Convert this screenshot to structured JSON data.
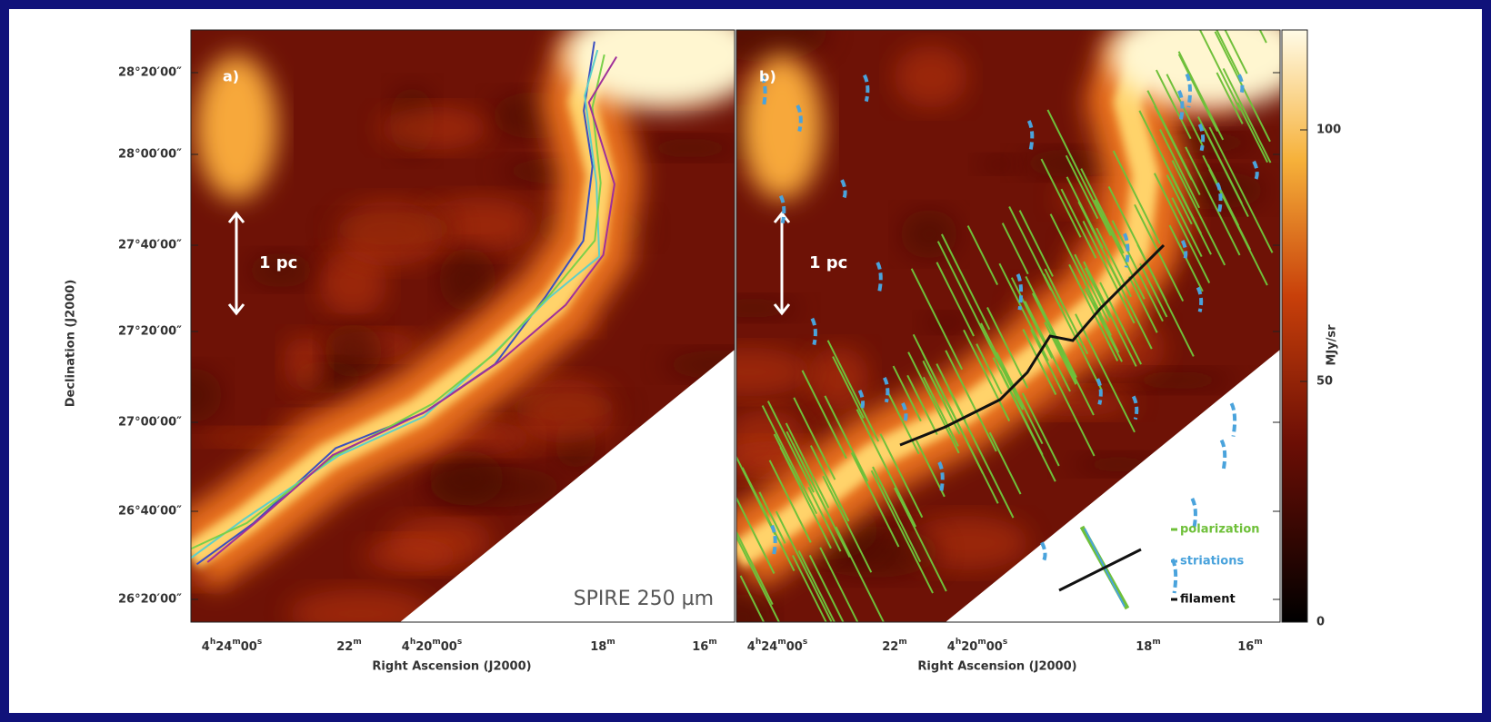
{
  "panels": [
    {
      "label": "a)",
      "scale_bar": "1 pc",
      "caption": "SPIRE 250 µm"
    },
    {
      "label": "b)",
      "scale_bar": "1 pc"
    }
  ],
  "y_axis": {
    "title": "Declination (J2000)",
    "ticks": [
      "28°20′00″",
      "28°00′00″",
      "27°40′00″",
      "27°20′00″",
      "27°00′00″",
      "26°40′00″",
      "26°20′00″"
    ]
  },
  "x_axis": {
    "title": "Right Ascension (J2000)",
    "ticks": [
      [
        "4",
        "h",
        "24",
        "m",
        "00",
        "s"
      ],
      [
        "22",
        "m"
      ],
      [
        "4",
        "h",
        "20",
        "m",
        "00",
        "s"
      ],
      [
        "18",
        "m"
      ],
      [
        "16",
        "m"
      ]
    ]
  },
  "colorbar": {
    "unit": "MJy/sr",
    "ticks": [
      100,
      50,
      0
    ]
  },
  "legend": [
    "polarization",
    "striations",
    "filament"
  ]
}
